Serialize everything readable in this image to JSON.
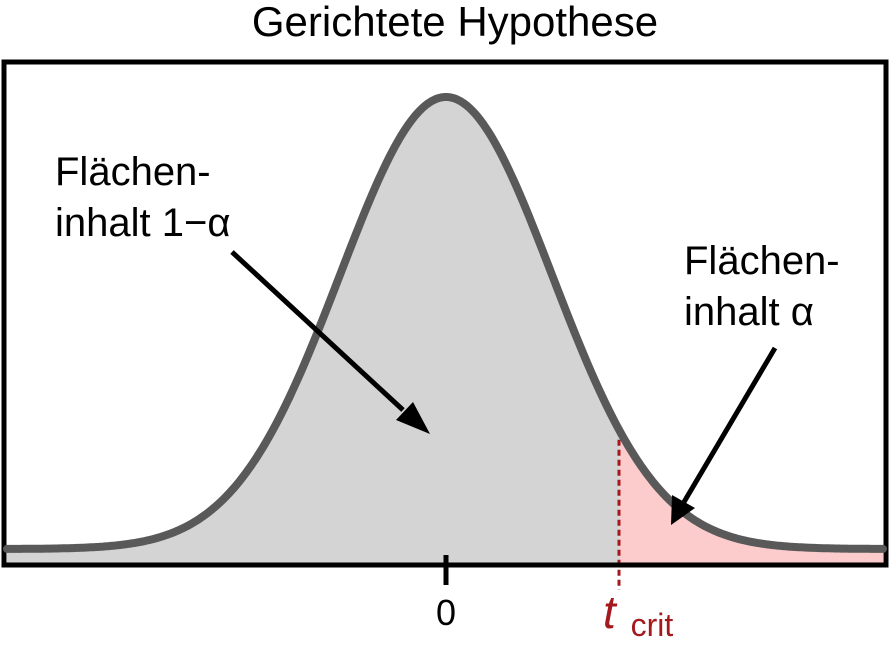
{
  "title": "Gerichtete Hypothese",
  "labels": {
    "left_area_line1": "Flächen-",
    "left_area_line2": "inhalt 1−α",
    "right_area_line1": "Flächen-",
    "right_area_line2": "inhalt α"
  },
  "axis": {
    "zero_label": "0",
    "critical_main": "t",
    "critical_sub": "crit"
  },
  "colors": {
    "curve": "#595959",
    "acceptance_fill": "#d4d4d4",
    "rejection_fill": "#fccccc",
    "critical_line": "#a3191e",
    "frame": "#000000",
    "text": "#000000"
  }
}
